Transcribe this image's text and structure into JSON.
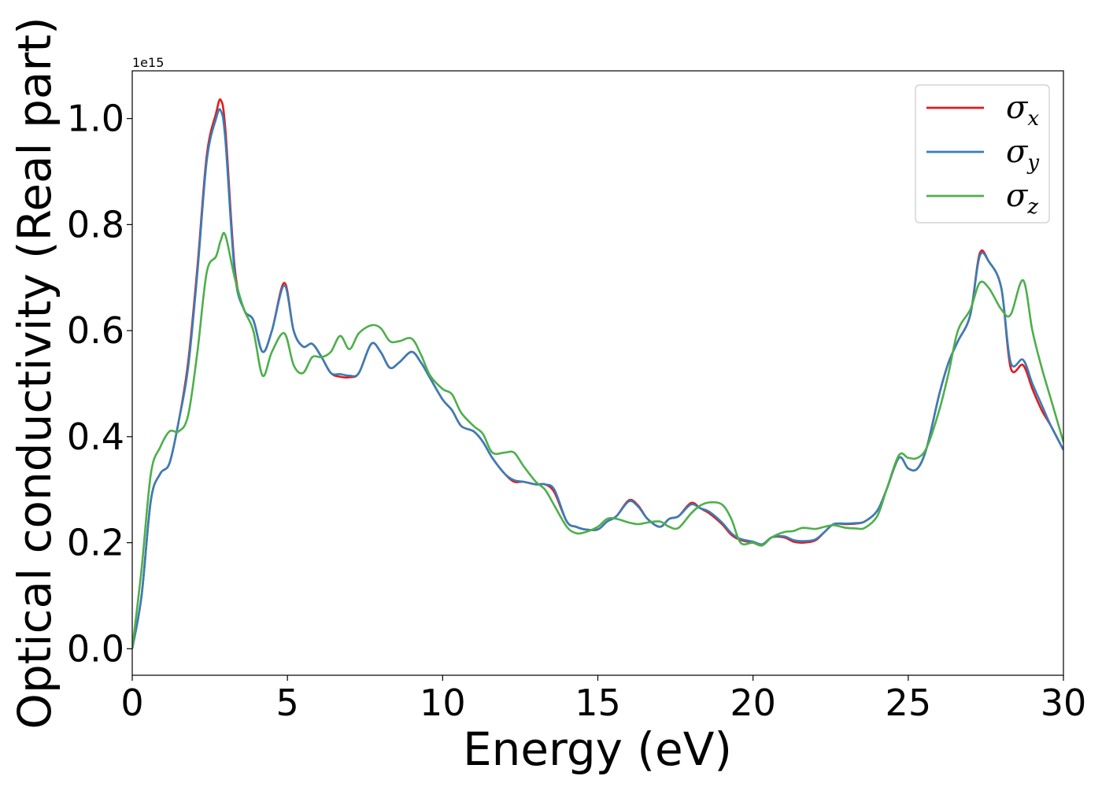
{
  "chart_data": {
    "type": "line",
    "title": "",
    "xlabel": "Energy (eV)",
    "ylabel": "Optical conductivity (Real part)",
    "y_offset_text": "1e15",
    "xlim": [
      0,
      30
    ],
    "ylim": [
      -0.05,
      1.09
    ],
    "xticks": [
      0,
      5,
      10,
      15,
      20,
      25,
      30
    ],
    "xtick_labels": [
      "0",
      "5",
      "10",
      "15",
      "20",
      "25",
      "30"
    ],
    "yticks": [
      0.0,
      0.2,
      0.4,
      0.6,
      0.8,
      1.0
    ],
    "ytick_labels": [
      "0.0",
      "0.2",
      "0.4",
      "0.6",
      "0.8",
      "1.0"
    ],
    "grid": false,
    "legend_position": "top-right",
    "legend": [
      {
        "symbol": "σ",
        "sub": "x",
        "color": "#e41a1c"
      },
      {
        "symbol": "σ",
        "sub": "y",
        "color": "#377eb8"
      },
      {
        "symbol": "σ",
        "sub": "z",
        "color": "#4daf4a"
      }
    ],
    "x": [
      0,
      0.3,
      0.6,
      0.9,
      1.2,
      1.5,
      1.8,
      2.1,
      2.4,
      2.7,
      2.85,
      3.0,
      3.3,
      3.6,
      3.9,
      4.2,
      4.5,
      4.9,
      5.2,
      5.5,
      5.8,
      6.1,
      6.4,
      6.7,
      7.0,
      7.3,
      7.7,
      8.0,
      8.3,
      8.6,
      9.0,
      9.3,
      9.6,
      10.0,
      10.3,
      10.6,
      11.0,
      11.3,
      11.6,
      12.0,
      12.3,
      12.6,
      13.0,
      13.3,
      13.6,
      14.0,
      14.3,
      14.6,
      15.0,
      15.3,
      15.6,
      16.0,
      16.3,
      16.6,
      17.0,
      17.3,
      17.6,
      18.0,
      18.3,
      18.6,
      19.0,
      19.3,
      19.6,
      20.0,
      20.3,
      20.6,
      21.0,
      21.3,
      21.6,
      22.0,
      22.3,
      22.6,
      23.0,
      23.3,
      23.6,
      24.0,
      24.3,
      24.7,
      25.0,
      25.3,
      25.6,
      26.0,
      26.3,
      26.6,
      27.0,
      27.3,
      27.6,
      28.0,
      28.3,
      28.7,
      29.0,
      29.3,
      29.6,
      30.0
    ],
    "series": [
      {
        "name": "σx",
        "color": "#e41a1c",
        "values": [
          0.0,
          0.1,
          0.28,
          0.33,
          0.35,
          0.43,
          0.54,
          0.72,
          0.93,
          1.01,
          1.035,
          0.98,
          0.72,
          0.64,
          0.62,
          0.56,
          0.6,
          0.69,
          0.6,
          0.57,
          0.575,
          0.55,
          0.52,
          0.513,
          0.512,
          0.52,
          0.575,
          0.56,
          0.53,
          0.54,
          0.56,
          0.54,
          0.51,
          0.47,
          0.45,
          0.42,
          0.41,
          0.39,
          0.36,
          0.33,
          0.315,
          0.315,
          0.31,
          0.31,
          0.295,
          0.24,
          0.23,
          0.225,
          0.225,
          0.24,
          0.25,
          0.28,
          0.27,
          0.245,
          0.23,
          0.245,
          0.25,
          0.275,
          0.265,
          0.255,
          0.235,
          0.215,
          0.205,
          0.2,
          0.195,
          0.21,
          0.21,
          0.202,
          0.2,
          0.204,
          0.22,
          0.235,
          0.235,
          0.236,
          0.24,
          0.26,
          0.3,
          0.36,
          0.34,
          0.34,
          0.38,
          0.48,
          0.54,
          0.58,
          0.63,
          0.745,
          0.73,
          0.68,
          0.53,
          0.535,
          0.49,
          0.45,
          0.42,
          0.375
        ]
      },
      {
        "name": "σy",
        "color": "#377eb8",
        "values": [
          0.0,
          0.1,
          0.28,
          0.33,
          0.35,
          0.43,
          0.53,
          0.71,
          0.92,
          1.0,
          1.015,
          0.96,
          0.71,
          0.64,
          0.62,
          0.56,
          0.6,
          0.685,
          0.6,
          0.57,
          0.575,
          0.55,
          0.52,
          0.518,
          0.515,
          0.52,
          0.575,
          0.56,
          0.53,
          0.54,
          0.56,
          0.54,
          0.51,
          0.47,
          0.45,
          0.42,
          0.41,
          0.39,
          0.36,
          0.33,
          0.318,
          0.315,
          0.31,
          0.31,
          0.3,
          0.24,
          0.23,
          0.225,
          0.225,
          0.24,
          0.25,
          0.278,
          0.268,
          0.245,
          0.23,
          0.245,
          0.25,
          0.272,
          0.265,
          0.258,
          0.238,
          0.218,
          0.207,
          0.202,
          0.197,
          0.21,
          0.212,
          0.205,
          0.203,
          0.206,
          0.22,
          0.235,
          0.236,
          0.237,
          0.24,
          0.26,
          0.3,
          0.36,
          0.34,
          0.34,
          0.38,
          0.48,
          0.54,
          0.58,
          0.63,
          0.74,
          0.73,
          0.68,
          0.54,
          0.545,
          0.5,
          0.46,
          0.42,
          0.375
        ]
      },
      {
        "name": "σz",
        "color": "#4daf4a",
        "values": [
          0.0,
          0.15,
          0.33,
          0.38,
          0.41,
          0.41,
          0.44,
          0.56,
          0.71,
          0.74,
          0.77,
          0.78,
          0.7,
          0.64,
          0.6,
          0.515,
          0.56,
          0.595,
          0.535,
          0.52,
          0.55,
          0.55,
          0.56,
          0.59,
          0.565,
          0.595,
          0.61,
          0.605,
          0.58,
          0.58,
          0.585,
          0.555,
          0.515,
          0.49,
          0.48,
          0.445,
          0.42,
          0.405,
          0.37,
          0.37,
          0.37,
          0.345,
          0.315,
          0.3,
          0.27,
          0.23,
          0.218,
          0.22,
          0.23,
          0.245,
          0.245,
          0.238,
          0.235,
          0.238,
          0.24,
          0.23,
          0.228,
          0.255,
          0.27,
          0.276,
          0.272,
          0.245,
          0.2,
          0.2,
          0.195,
          0.21,
          0.22,
          0.222,
          0.228,
          0.226,
          0.23,
          0.233,
          0.228,
          0.227,
          0.228,
          0.25,
          0.3,
          0.365,
          0.36,
          0.36,
          0.38,
          0.45,
          0.52,
          0.6,
          0.64,
          0.69,
          0.68,
          0.64,
          0.63,
          0.695,
          0.6,
          0.53,
          0.47,
          0.39
        ]
      }
    ]
  }
}
